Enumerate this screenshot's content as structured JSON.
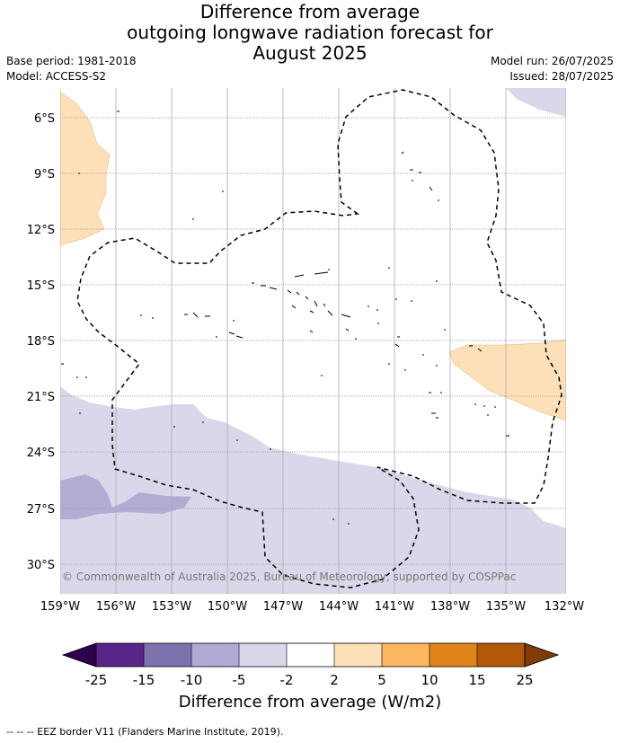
{
  "title": {
    "line1": "Difference from average",
    "line2": "outgoing longwave radiation forecast for",
    "line3": "August 2025"
  },
  "meta": {
    "base_period": "Base period: 1981-2018",
    "model": "Model: ACCESS-S2",
    "model_run": "Model run: 26/07/2025",
    "issued": "Issued: 28/07/2025"
  },
  "map": {
    "lat_labels": [
      "6°S",
      "9°S",
      "12°S",
      "15°S",
      "18°S",
      "21°S",
      "24°S",
      "27°S",
      "30°S"
    ],
    "lon_labels": [
      "159°W",
      "156°W",
      "153°W",
      "150°W",
      "147°W",
      "144°W",
      "141°W",
      "138°W",
      "135°W",
      "132°W"
    ],
    "copyright": "© Commonwealth of Australia 2025, Bureau of Meteorology, supported by COSPPac",
    "colors": {
      "light_purple": "#d8d8ea",
      "mid_purple": "#b2acd4",
      "light_orange": "#fde0b8",
      "grid": "#999999"
    }
  },
  "colorbar": {
    "title": "Difference from average (W/m2)",
    "tick_labels": [
      "-25",
      "-15",
      "-10",
      "-5",
      "-2",
      "2",
      "5",
      "10",
      "15",
      "25"
    ],
    "colors": [
      "#5a2488",
      "#7e72ae",
      "#b1aad4",
      "#d8d8ea",
      "#ffffff",
      "#fde0b8",
      "#fcb661",
      "#e2841b",
      "#b25808"
    ],
    "under_color": "#2d004b",
    "over_color": "#7f3b08"
  },
  "footer": "-- -- -- EEZ border V11 (Flanders Marine Institute, 2019)."
}
